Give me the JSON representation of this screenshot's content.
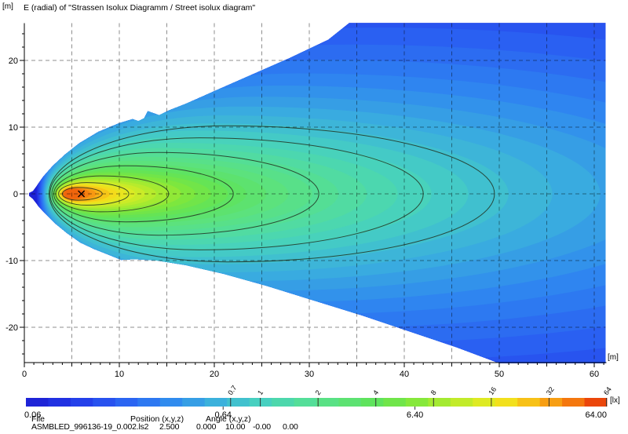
{
  "title": "E (radial) of \"Strassen Isolux Diagramm / Street isolux diagram\"",
  "unit_labels": {
    "y_axis": "[m]",
    "x_axis": "[m]",
    "colorbar": "[lx]"
  },
  "footer": {
    "file_label": "File",
    "file_name": "ASMBLED_996136-19_0.002.ls2",
    "position_label": "Position (x,y,z)",
    "position_values": [
      "2.500",
      "0.000",
      "10.00"
    ],
    "angle_label": "Angle (x,y,z)",
    "angle_values": [
      "-0.00",
      "0.00"
    ]
  },
  "chart_data": {
    "type": "heatmap",
    "subtype": "isolux-contour-map",
    "title": "E (radial) of \"Strassen Isolux Diagramm / Street isolux diagram\"",
    "x_axis": {
      "unit": "[m]",
      "min": 0,
      "max": 61,
      "tick_labels": [
        0,
        10,
        20,
        30,
        40,
        50,
        60
      ],
      "minor_step_m": 1,
      "mid_step_m": 5,
      "grid_step_m": 5
    },
    "y_axis": {
      "unit": "[m]",
      "min": -25.5,
      "max": 25.5,
      "tick_labels": [
        20,
        10,
        0,
        -10,
        -20
      ],
      "minor_step_m": 2,
      "grid_step_m": 10
    },
    "grid": {
      "on": true,
      "style": "dashed"
    },
    "scale": "log",
    "colorbar": {
      "unit": "[lx]",
      "min_lx": 0.06,
      "max_lx": 64.0,
      "bottom_tick_labels": [
        "0.06",
        "0.64",
        "6.40",
        "64.00"
      ],
      "bottom_tick_values": [
        0.06,
        0.64,
        6.4,
        64.0
      ],
      "level_tick_labels": [
        "0.7",
        "1",
        "2",
        "4",
        "8",
        "16",
        "32",
        "64"
      ],
      "level_tick_values": [
        0.7,
        1,
        2,
        4,
        8,
        16,
        32,
        64
      ],
      "segments": 26
    },
    "colormap_stops": [
      {
        "t": 0.0,
        "c": "#1c1dd2"
      },
      {
        "t": 0.08,
        "c": "#2339e8"
      },
      {
        "t": 0.16,
        "c": "#2a5ef2"
      },
      {
        "t": 0.24,
        "c": "#2f86f0"
      },
      {
        "t": 0.32,
        "c": "#3aaede"
      },
      {
        "t": 0.4,
        "c": "#46cfc2"
      },
      {
        "t": 0.47,
        "c": "#52dd9e"
      },
      {
        "t": 0.54,
        "c": "#5ce27b"
      },
      {
        "t": 0.6,
        "c": "#5fe35b"
      },
      {
        "t": 0.66,
        "c": "#7ce73e"
      },
      {
        "t": 0.72,
        "c": "#abea2f"
      },
      {
        "t": 0.78,
        "c": "#d9ec25"
      },
      {
        "t": 0.83,
        "c": "#f4df1c"
      },
      {
        "t": 0.88,
        "c": "#f8b515"
      },
      {
        "t": 0.93,
        "c": "#f68410"
      },
      {
        "t": 0.97,
        "c": "#ee5a0b"
      },
      {
        "t": 1.0,
        "c": "#e52309"
      }
    ],
    "source_marker": {
      "x_m": 6.0,
      "y_m": 0.0,
      "glyph": "x-cross"
    },
    "contour_levels_lx": [
      0.7,
      1,
      2,
      4,
      8,
      16,
      32
    ],
    "contours": [
      {
        "level_lx": 0.7,
        "tip_left_m": 2.6,
        "tip_right_m": 49.5,
        "half_height_m": 10.2
      },
      {
        "level_lx": 1,
        "tip_left_m": 2.7,
        "tip_right_m": 42.0,
        "half_height_m": 8.4
      },
      {
        "level_lx": 2,
        "tip_left_m": 2.9,
        "tip_right_m": 31.0,
        "half_height_m": 6.2
      },
      {
        "level_lx": 4,
        "tip_left_m": 3.1,
        "tip_right_m": 22.0,
        "half_height_m": 4.2
      },
      {
        "level_lx": 8,
        "tip_left_m": 3.3,
        "tip_right_m": 15.2,
        "half_height_m": 2.7
      },
      {
        "level_lx": 16,
        "tip_left_m": 3.6,
        "tip_right_m": 11.0,
        "half_height_m": 1.7
      },
      {
        "level_lx": 32,
        "tip_left_m": 4.0,
        "tip_right_m": 8.2,
        "half_height_m": 0.95
      }
    ],
    "fill_bands": {
      "min_lx": 0.06,
      "max_lx": 43.5,
      "steps_per_doubling": 4,
      "model": {
        "xr_coef": 42,
        "xl_base": 1.2,
        "xl_per_doubling": 0.31,
        "ry_coef": 8.3,
        "ry_exp": 0.62,
        "cx_frac": 0.35,
        "ry_cap": 30
      }
    },
    "beam_outline_m": [
      [
        0.5,
        0.15
      ],
      [
        0.9,
        0.45
      ],
      [
        1.3,
        1.2
      ],
      [
        2.0,
        2.6
      ],
      [
        3.0,
        4.2
      ],
      [
        4.3,
        5.9
      ],
      [
        5.8,
        7.6
      ],
      [
        7.8,
        9.3
      ],
      [
        10.0,
        10.6
      ],
      [
        11.4,
        11.2
      ],
      [
        12.0,
        10.9
      ],
      [
        12.6,
        11.3
      ],
      [
        13.0,
        12.4
      ],
      [
        14.2,
        11.8
      ],
      [
        15.2,
        12.5
      ],
      [
        17.0,
        13.5
      ],
      [
        20.0,
        15.4
      ],
      [
        24.0,
        17.9
      ],
      [
        28.0,
        20.4
      ],
      [
        32.0,
        23.1
      ],
      [
        34.2,
        25.6
      ],
      [
        61.2,
        25.6
      ],
      [
        61.2,
        -25.4
      ],
      [
        50.0,
        -25.4
      ],
      [
        45.5,
        -23.0
      ],
      [
        40.5,
        -20.6
      ],
      [
        35.5,
        -18.2
      ],
      [
        30.5,
        -16.0
      ],
      [
        25.5,
        -13.8
      ],
      [
        21.0,
        -12.0
      ],
      [
        17.0,
        -10.7
      ],
      [
        14.0,
        -10.0
      ],
      [
        11.6,
        -9.8
      ],
      [
        10.2,
        -9.9
      ],
      [
        9.0,
        -9.2
      ],
      [
        7.4,
        -8.3
      ],
      [
        5.9,
        -7.3
      ],
      [
        4.5,
        -5.9
      ],
      [
        3.3,
        -4.5
      ],
      [
        2.3,
        -3.1
      ],
      [
        1.5,
        -1.9
      ],
      [
        0.9,
        -0.8
      ],
      [
        0.5,
        -0.3
      ]
    ]
  }
}
